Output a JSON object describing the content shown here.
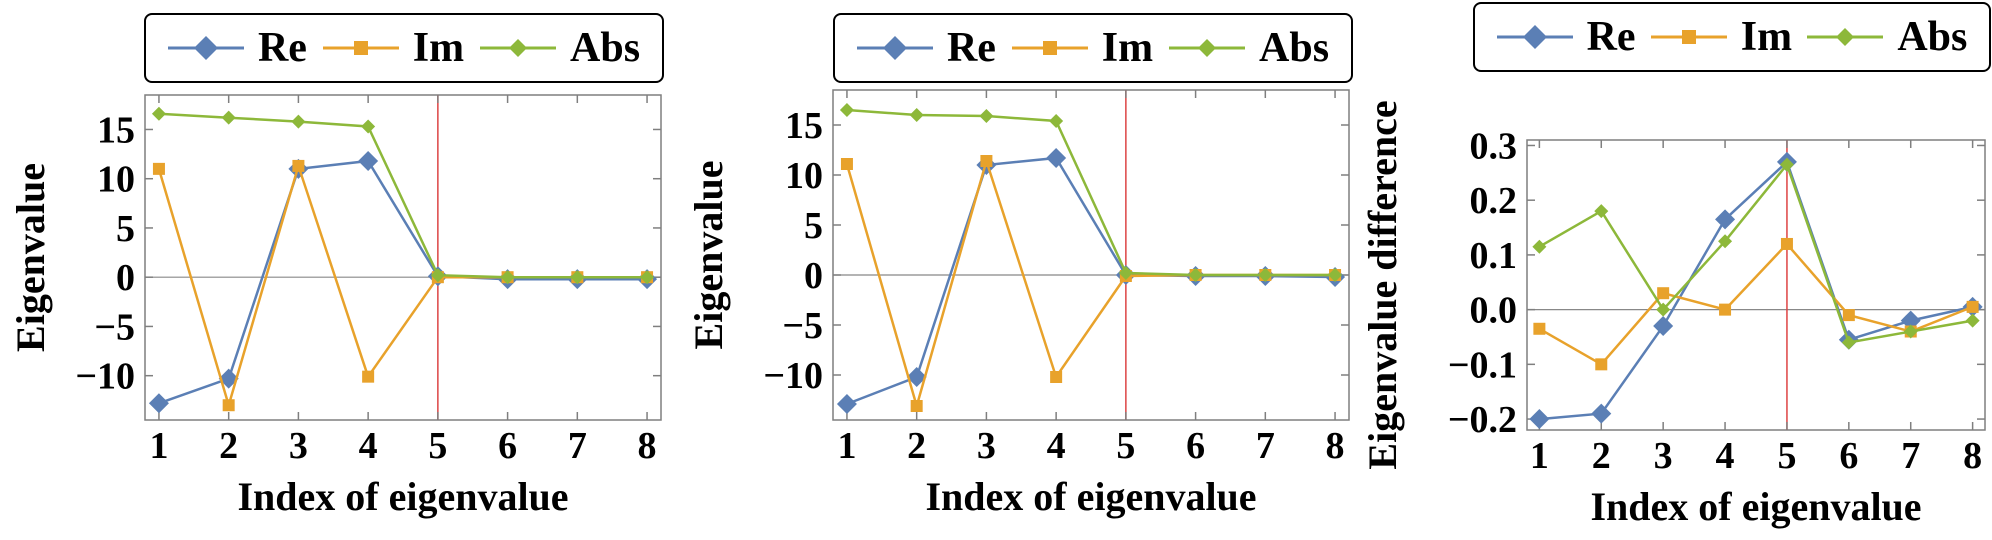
{
  "legend": {
    "entries": [
      {
        "label": "Re",
        "color": "#5b7fb5",
        "marker": "diamond"
      },
      {
        "label": "Im",
        "color": "#e8a22b",
        "marker": "square"
      },
      {
        "label": "Abs",
        "color": "#8db83a",
        "marker": "diamond"
      }
    ]
  },
  "colors": {
    "axis": "#7f7f7f",
    "marker_line": "#dd4444",
    "zero_line": "#888888"
  },
  "chart_data": [
    {
      "type": "line",
      "xlabel": "Index of eigenvalue",
      "ylabel": "Eigenvalue",
      "x": [
        1,
        2,
        3,
        4,
        5,
        6,
        7,
        8
      ],
      "xlim": [
        0.8,
        8.2
      ],
      "ylim": [
        -14.5,
        18.5
      ],
      "yticks": [
        -10,
        -5,
        0,
        5,
        10,
        15
      ],
      "ytick_labels": [
        "−10",
        "−5",
        "0",
        "5",
        "10",
        "15"
      ],
      "vline_x": 5,
      "series": [
        {
          "name": "Re",
          "values": [
            -12.8,
            -10.3,
            11.0,
            11.8,
            0.1,
            -0.2,
            -0.2,
            -0.2
          ]
        },
        {
          "name": "Im",
          "values": [
            11.0,
            -13.0,
            11.3,
            -10.1,
            0.0,
            0.0,
            0.0,
            0.0
          ]
        },
        {
          "name": "Abs",
          "values": [
            16.6,
            16.2,
            15.8,
            15.3,
            0.2,
            0.0,
            0.0,
            0.0
          ]
        }
      ]
    },
    {
      "type": "line",
      "xlabel": "Index of eigenvalue",
      "ylabel": "Eigenvalue",
      "x": [
        1,
        2,
        3,
        4,
        5,
        6,
        7,
        8
      ],
      "xlim": [
        0.8,
        8.2
      ],
      "ylim": [
        -14.5,
        18.5
      ],
      "yticks": [
        -10,
        -5,
        0,
        5,
        10,
        15
      ],
      "ytick_labels": [
        "−10",
        "−5",
        "0",
        "5",
        "10",
        "15"
      ],
      "vline_x": 5,
      "series": [
        {
          "name": "Re",
          "values": [
            -12.9,
            -10.2,
            11.0,
            11.7,
            0.0,
            -0.1,
            -0.1,
            -0.2
          ]
        },
        {
          "name": "Im",
          "values": [
            11.1,
            -13.1,
            11.4,
            -10.2,
            -0.1,
            0.0,
            0.0,
            0.0
          ]
        },
        {
          "name": "Abs",
          "values": [
            16.5,
            16.0,
            15.9,
            15.4,
            0.2,
            0.0,
            0.0,
            0.0
          ]
        }
      ]
    },
    {
      "type": "line",
      "xlabel": "Index of eigenvalue",
      "ylabel": "Eigenvalue difference",
      "x": [
        1,
        2,
        3,
        4,
        5,
        6,
        7,
        8
      ],
      "xlim": [
        0.8,
        8.2
      ],
      "ylim": [
        -0.22,
        0.31
      ],
      "yticks": [
        -0.2,
        -0.1,
        0.0,
        0.1,
        0.2,
        0.3
      ],
      "ytick_labels": [
        "−0.2",
        "−0.1",
        "0.0",
        "0.1",
        "0.2",
        "0.3"
      ],
      "vline_x": 5,
      "series": [
        {
          "name": "Re",
          "values": [
            -0.2,
            -0.19,
            -0.03,
            0.165,
            0.27,
            -0.055,
            -0.02,
            0.005
          ]
        },
        {
          "name": "Im",
          "values": [
            -0.035,
            -0.1,
            0.03,
            0.0,
            0.12,
            -0.01,
            -0.04,
            0.005
          ]
        },
        {
          "name": "Abs",
          "values": [
            0.115,
            0.18,
            0.0,
            0.125,
            0.265,
            -0.06,
            -0.04,
            -0.02
          ]
        }
      ]
    }
  ]
}
